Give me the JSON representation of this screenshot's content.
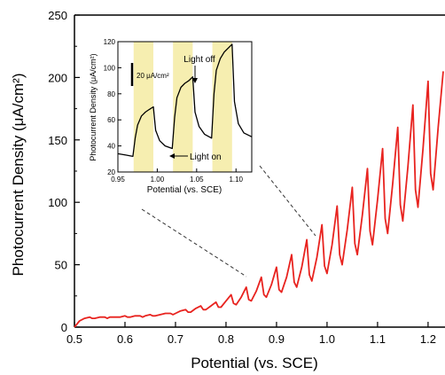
{
  "chart_data": [
    {
      "type": "line",
      "xlabel": "Potential (vs. SCE)",
      "ylabel": "Photocurrent Density (μA/cm²)",
      "xlim": [
        0.5,
        1.23
      ],
      "ylim": [
        0,
        250
      ],
      "xticks": [
        0.5,
        0.6,
        0.7,
        0.8,
        0.9,
        1.0,
        1.1,
        1.2
      ],
      "xtick_labels": [
        "0.5",
        "0.6",
        "0.7",
        "0.8",
        "0.9",
        "1.0",
        "1.1",
        "1.2"
      ],
      "yticks": [
        0,
        50,
        100,
        150,
        200,
        250
      ],
      "ytick_labels": [
        "0",
        "50",
        "100",
        "150",
        "200",
        "250"
      ],
      "grid": false,
      "series": [
        {
          "color": "#e8231f",
          "x": [
            0.5,
            0.51,
            0.52,
            0.53,
            0.535,
            0.54,
            0.55,
            0.56,
            0.565,
            0.57,
            0.58,
            0.59,
            0.6,
            0.605,
            0.61,
            0.62,
            0.63,
            0.635,
            0.64,
            0.65,
            0.655,
            0.66,
            0.67,
            0.68,
            0.69,
            0.695,
            0.7,
            0.71,
            0.72,
            0.725,
            0.73,
            0.74,
            0.75,
            0.755,
            0.76,
            0.77,
            0.78,
            0.785,
            0.79,
            0.8,
            0.81,
            0.815,
            0.82,
            0.83,
            0.84,
            0.845,
            0.85,
            0.86,
            0.87,
            0.875,
            0.88,
            0.89,
            0.9,
            0.905,
            0.91,
            0.92,
            0.93,
            0.935,
            0.94,
            0.95,
            0.96,
            0.965,
            0.97,
            0.98,
            0.99,
            0.995,
            1.0,
            1.01,
            1.02,
            1.025,
            1.03,
            1.04,
            1.05,
            1.055,
            1.06,
            1.07,
            1.08,
            1.085,
            1.09,
            1.1,
            1.11,
            1.115,
            1.12,
            1.13,
            1.14,
            1.145,
            1.15,
            1.16,
            1.17,
            1.175,
            1.18,
            1.19,
            1.2,
            1.205,
            1.21,
            1.22,
            1.23
          ],
          "y": [
            0,
            5,
            7,
            8,
            7,
            7,
            8,
            8,
            7,
            8,
            8,
            8,
            9,
            8,
            8,
            9,
            9,
            8,
            9,
            10,
            9,
            9,
            10,
            11,
            11,
            10,
            11,
            13,
            14,
            12,
            12,
            15,
            17,
            14,
            14,
            17,
            20,
            16,
            16,
            21,
            26,
            19,
            18,
            24,
            32,
            22,
            21,
            29,
            40,
            26,
            24,
            34,
            48,
            30,
            28,
            40,
            58,
            36,
            32,
            48,
            70,
            42,
            37,
            56,
            82,
            49,
            43,
            66,
            97,
            58,
            50,
            78,
            112,
            67,
            58,
            90,
            127,
            77,
            66,
            102,
            143,
            87,
            75,
            115,
            160,
            98,
            85,
            128,
            178,
            110,
            96,
            143,
            197,
            123,
            110,
            160,
            205
          ]
        }
      ],
      "annotations": []
    },
    {
      "type": "line",
      "xlabel": "Potential (vs. SCE)",
      "ylabel": "Photocurrent Density (μA/cm²)",
      "xlim": [
        0.95,
        1.12
      ],
      "ylim": [
        20,
        120
      ],
      "xticks": [
        0.95,
        1.0,
        1.05,
        1.1
      ],
      "xtick_labels": [
        "0.95",
        "1.00",
        "1.05",
        "1.10"
      ],
      "yticks": [
        20,
        40,
        60,
        80,
        100,
        120
      ],
      "ytick_labels": [
        "20",
        "40",
        "60",
        "80",
        "100",
        "120"
      ],
      "light_on_intervals": [
        [
          0.97,
          0.995
        ],
        [
          1.02,
          1.045
        ],
        [
          1.07,
          1.095
        ]
      ],
      "series": [
        {
          "color": "#000000",
          "x": [
            0.95,
            0.96,
            0.969,
            0.972,
            0.975,
            0.98,
            0.985,
            0.99,
            0.995,
            0.998,
            1.003,
            1.01,
            1.019,
            1.022,
            1.025,
            1.03,
            1.035,
            1.04,
            1.045,
            1.048,
            1.053,
            1.06,
            1.069,
            1.072,
            1.075,
            1.08,
            1.085,
            1.09,
            1.095,
            1.098,
            1.103,
            1.11,
            1.12
          ],
          "y": [
            34,
            33,
            32,
            46,
            56,
            63,
            66,
            68,
            70,
            52,
            44,
            40,
            38,
            62,
            77,
            85,
            88,
            90,
            93,
            66,
            55,
            49,
            46,
            80,
            98,
            107,
            112,
            115,
            118,
            74,
            57,
            50,
            47
          ]
        }
      ],
      "annotations": [
        {
          "text": "Light off",
          "x": 1.047,
          "y": 101
        },
        {
          "text": "Light on",
          "x": 1.043,
          "y": 32
        },
        {
          "text": "20 μA/cm²"
        }
      ]
    }
  ]
}
